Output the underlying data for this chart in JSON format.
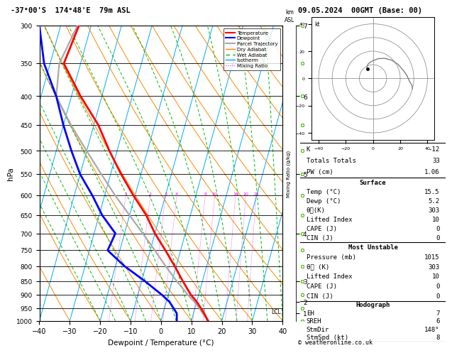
{
  "title_left": "-37°00'S  174°48'E  79m ASL",
  "title_right": "09.05.2024  00GMT (Base: 00)",
  "xlabel": "Dewpoint / Temperature (°C)",
  "ylabel_left": "hPa",
  "temp_color": "#ff0000",
  "dewp_color": "#0000ff",
  "parcel_color": "#aaaaaa",
  "dry_adiabat_color": "#ff8800",
  "wet_adiabat_color": "#00bb00",
  "isotherm_color": "#00aaff",
  "mixing_ratio_color": "#ff00ff",
  "background": "#ffffff",
  "pressure_levels": [
    300,
    350,
    400,
    450,
    500,
    550,
    600,
    650,
    700,
    750,
    800,
    850,
    900,
    950,
    1000
  ],
  "xlim": [
    -40,
    40
  ],
  "skew": 27,
  "temperature_profile": {
    "pressure": [
      1000,
      970,
      950,
      925,
      900,
      850,
      800,
      750,
      700,
      650,
      600,
      550,
      500,
      450,
      400,
      350,
      300
    ],
    "temp_c": [
      15.5,
      13.5,
      12.0,
      10.0,
      7.5,
      3.5,
      -0.5,
      -5.0,
      -10.0,
      -14.5,
      -20.5,
      -26.5,
      -32.5,
      -38.5,
      -47.0,
      -55.5,
      -54.0
    ]
  },
  "dewpoint_profile": {
    "pressure": [
      1000,
      970,
      950,
      925,
      900,
      850,
      800,
      750,
      700,
      650,
      600,
      550,
      500,
      450,
      400,
      350,
      300
    ],
    "dewp_c": [
      5.2,
      4.5,
      3.0,
      1.0,
      -2.0,
      -9.0,
      -17.0,
      -24.0,
      -23.0,
      -29.0,
      -34.0,
      -40.0,
      -45.0,
      -50.0,
      -55.0,
      -62.0,
      -67.0
    ]
  },
  "parcel_profile": {
    "pressure": [
      1000,
      970,
      950,
      925,
      900,
      850,
      800,
      750,
      700,
      650,
      600,
      550,
      500,
      450,
      400,
      350,
      300
    ],
    "temp_c": [
      15.5,
      13.0,
      11.5,
      9.2,
      6.5,
      1.5,
      -3.5,
      -8.5,
      -14.0,
      -20.0,
      -26.5,
      -33.0,
      -40.0,
      -47.5,
      -55.0,
      -57.0,
      -54.5
    ]
  },
  "km_ticks_p": [
    970,
    925,
    850,
    700,
    550,
    400,
    300
  ],
  "km_ticks_v": [
    1,
    2,
    3,
    4,
    5,
    6,
    7
  ],
  "km8_p": 220,
  "lcl_pressure": 965,
  "mixing_ratio_vals": [
    1,
    2,
    3,
    4,
    8,
    10,
    16,
    20,
    25
  ],
  "wind_pressure": [
    1000,
    950,
    900,
    850,
    800,
    750,
    700,
    650,
    600,
    550,
    500,
    450,
    400,
    350,
    300
  ],
  "wind_direction": [
    148,
    150,
    155,
    160,
    170,
    180,
    195,
    210,
    225,
    240,
    255,
    265,
    275,
    280,
    285
  ],
  "wind_speed_kt": [
    8,
    9,
    10,
    11,
    12,
    13,
    15,
    17,
    19,
    21,
    23,
    25,
    27,
    29,
    30
  ],
  "hodo_circles": [
    10,
    20,
    30,
    40
  ],
  "footer": "© weatheronline.co.uk"
}
